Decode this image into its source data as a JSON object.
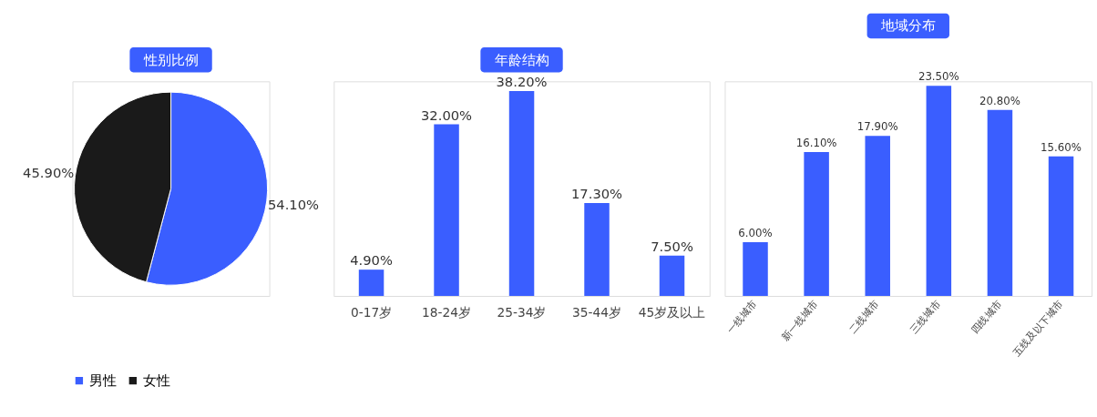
{
  "chart_data": [
    {
      "type": "pie",
      "title": "性别比例",
      "categories": [
        "男性",
        "女性"
      ],
      "values": [
        54.1,
        45.9
      ],
      "colors": [
        "#3a5eff",
        "#1a1a1a"
      ],
      "value_labels": [
        "54.10%",
        "45.90%"
      ],
      "legend": "bottom"
    },
    {
      "type": "bar",
      "title": "年龄结构",
      "categories": [
        "0-17岁",
        "18-24岁",
        "25-34岁",
        "35-44岁",
        "45岁及以上"
      ],
      "values": [
        4.9,
        32.0,
        38.2,
        17.3,
        7.5
      ],
      "color": "#3a5eff",
      "value_labels": [
        "4.90%",
        "32.00%",
        "38.20%",
        "17.30%",
        "7.50%"
      ],
      "tick_labels": "x"
    },
    {
      "type": "bar",
      "title": "地域分布",
      "categories": [
        "一线城市",
        "新一线城市",
        "二线城市",
        "三线城市",
        "四线城市",
        "五线及以下城市"
      ],
      "values": [
        6.0,
        16.1,
        17.9,
        23.5,
        20.8,
        15.6
      ],
      "color": "#3a5eff",
      "value_labels": [
        "6.00%",
        "16.10%",
        "17.90%",
        "23.50%",
        "20.80%",
        "15.60%"
      ],
      "tick_labels": "x"
    }
  ]
}
